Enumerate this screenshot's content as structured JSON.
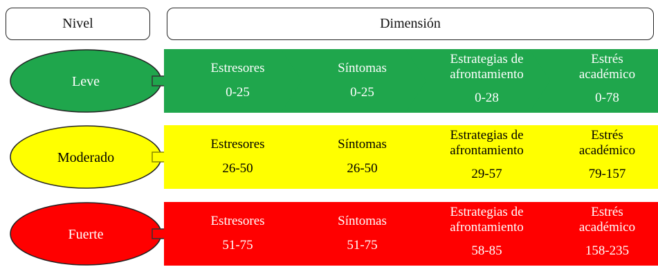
{
  "headers": {
    "nivel": "Nivel",
    "dimension": "Dimensión"
  },
  "levels": [
    {
      "name": "Leve",
      "fill": "#1fa64c",
      "text_color": "#ffffff",
      "cells": [
        {
          "lines": [
            "Estresores"
          ],
          "range": "0-25"
        },
        {
          "lines": [
            "Síntomas"
          ],
          "range": "0-25"
        },
        {
          "lines": [
            "Estrategias de",
            "afrontamiento"
          ],
          "range": "0-28"
        },
        {
          "lines": [
            "Estrés",
            "académico"
          ],
          "range": "0-78"
        }
      ]
    },
    {
      "name": "Moderado",
      "fill": "#ffff00",
      "text_color": "#000000",
      "cells": [
        {
          "lines": [
            "Estresores"
          ],
          "range": "26-50"
        },
        {
          "lines": [
            "Síntomas"
          ],
          "range": "26-50"
        },
        {
          "lines": [
            "Estrategias de",
            "afrontamiento"
          ],
          "range": "29-57"
        },
        {
          "lines": [
            "Estrés",
            "académico"
          ],
          "range": "79-157"
        }
      ]
    },
    {
      "name": "Fuerte",
      "fill": "#ff0000",
      "text_color": "#ffffff",
      "cells": [
        {
          "lines": [
            "Estresores"
          ],
          "range": "51-75"
        },
        {
          "lines": [
            "Síntomas"
          ],
          "range": "51-75"
        },
        {
          "lines": [
            "Estrategias de",
            "afrontamiento"
          ],
          "range": "58-85"
        },
        {
          "lines": [
            "Estrés",
            "académico"
          ],
          "range": "158-235"
        }
      ]
    }
  ]
}
